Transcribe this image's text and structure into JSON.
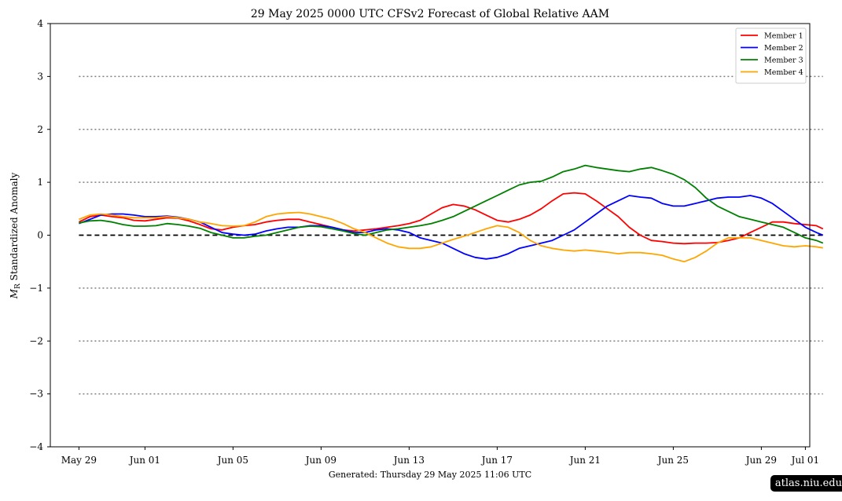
{
  "chart_data": {
    "type": "line",
    "title": "29  May  2025 0000 UTC   CFSv2 Forecast of Global Relative AAM",
    "ylabel": "M_R Standardized Anomaly",
    "ylabel_main": "M",
    "ylabel_sub": "R",
    "ylabel_rest": " Standardized Anomaly",
    "footer": "Generated: Thursday  29  May  2025  11:06 UTC",
    "x_unit": "days since May 29 2025 00 UTC",
    "xlim": [
      -1.3,
      33.2
    ],
    "ylim": [
      -4,
      4
    ],
    "xticks": [
      {
        "x": 0,
        "label": "May 29"
      },
      {
        "x": 3,
        "label": "Jun 01"
      },
      {
        "x": 7,
        "label": "Jun 05"
      },
      {
        "x": 11,
        "label": "Jun 09"
      },
      {
        "x": 15,
        "label": "Jun 13"
      },
      {
        "x": 19,
        "label": "Jun 17"
      },
      {
        "x": 23,
        "label": "Jun 21"
      },
      {
        "x": 27,
        "label": "Jun 25"
      },
      {
        "x": 31,
        "label": "Jun 29"
      },
      {
        "x": 33,
        "label": "Jul 01"
      }
    ],
    "yticks": [
      -4,
      -3,
      -2,
      -1,
      0,
      1,
      2,
      3,
      4
    ],
    "reference_lines": [
      {
        "y": 0,
        "style": "dashed",
        "color": "#000000"
      },
      {
        "y": 1,
        "style": "dotted",
        "color": "#808080"
      },
      {
        "y": 2,
        "style": "dotted",
        "color": "#808080"
      },
      {
        "y": 3,
        "style": "dotted",
        "color": "#808080"
      },
      {
        "y": -1,
        "style": "dotted",
        "color": "#808080"
      },
      {
        "y": -2,
        "style": "dotted",
        "color": "#808080"
      },
      {
        "y": -3,
        "style": "dotted",
        "color": "#808080"
      }
    ],
    "legend_position": "top-right",
    "series": [
      {
        "name": "Member 1",
        "color": "#ff0000",
        "points": [
          [
            0,
            0.25
          ],
          [
            0.5,
            0.35
          ],
          [
            1,
            0.38
          ],
          [
            1.5,
            0.35
          ],
          [
            2,
            0.33
          ],
          [
            2.5,
            0.28
          ],
          [
            3,
            0.27
          ],
          [
            3.5,
            0.3
          ],
          [
            4,
            0.33
          ],
          [
            4.5,
            0.32
          ],
          [
            5,
            0.27
          ],
          [
            5.5,
            0.2
          ],
          [
            6,
            0.12
          ],
          [
            6.5,
            0.1
          ],
          [
            7,
            0.15
          ],
          [
            7.5,
            0.18
          ],
          [
            8,
            0.2
          ],
          [
            8.5,
            0.25
          ],
          [
            9,
            0.28
          ],
          [
            9.5,
            0.3
          ],
          [
            10,
            0.3
          ],
          [
            10.5,
            0.25
          ],
          [
            11,
            0.2
          ],
          [
            11.5,
            0.15
          ],
          [
            12,
            0.1
          ],
          [
            12.5,
            0.08
          ],
          [
            13,
            0.1
          ],
          [
            13.5,
            0.12
          ],
          [
            14,
            0.15
          ],
          [
            14.5,
            0.18
          ],
          [
            15,
            0.22
          ],
          [
            15.5,
            0.28
          ],
          [
            16,
            0.4
          ],
          [
            16.5,
            0.52
          ],
          [
            17,
            0.58
          ],
          [
            17.5,
            0.55
          ],
          [
            18,
            0.48
          ],
          [
            18.5,
            0.38
          ],
          [
            19,
            0.28
          ],
          [
            19.5,
            0.25
          ],
          [
            20,
            0.3
          ],
          [
            20.5,
            0.38
          ],
          [
            21,
            0.5
          ],
          [
            21.5,
            0.65
          ],
          [
            22,
            0.78
          ],
          [
            22.5,
            0.8
          ],
          [
            23,
            0.78
          ],
          [
            23.5,
            0.65
          ],
          [
            24,
            0.5
          ],
          [
            24.5,
            0.35
          ],
          [
            25,
            0.15
          ],
          [
            25.5,
            0
          ],
          [
            26,
            -0.1
          ],
          [
            26.5,
            -0.12
          ],
          [
            27,
            -0.15
          ],
          [
            27.5,
            -0.16
          ],
          [
            28,
            -0.15
          ],
          [
            28.5,
            -0.15
          ],
          [
            29,
            -0.14
          ],
          [
            29.5,
            -0.1
          ],
          [
            30,
            -0.05
          ],
          [
            30.5,
            0.05
          ],
          [
            31,
            0.15
          ],
          [
            31.5,
            0.25
          ],
          [
            32,
            0.25
          ],
          [
            32.5,
            0.22
          ],
          [
            33,
            0.2
          ],
          [
            33.5,
            0.18
          ],
          [
            33.8,
            0.12
          ]
        ]
      },
      {
        "name": "Member 2",
        "color": "#0000ff",
        "points": [
          [
            0,
            0.22
          ],
          [
            0.5,
            0.3
          ],
          [
            1,
            0.38
          ],
          [
            1.5,
            0.4
          ],
          [
            2,
            0.4
          ],
          [
            2.5,
            0.38
          ],
          [
            3,
            0.35
          ],
          [
            3.5,
            0.35
          ],
          [
            4,
            0.36
          ],
          [
            4.5,
            0.34
          ],
          [
            5,
            0.3
          ],
          [
            5.5,
            0.25
          ],
          [
            6,
            0.15
          ],
          [
            6.5,
            0.05
          ],
          [
            7,
            0.02
          ],
          [
            7.5,
            0
          ],
          [
            8,
            0.02
          ],
          [
            8.5,
            0.08
          ],
          [
            9,
            0.12
          ],
          [
            9.5,
            0.15
          ],
          [
            10,
            0.15
          ],
          [
            10.5,
            0.18
          ],
          [
            11,
            0.18
          ],
          [
            11.5,
            0.15
          ],
          [
            12,
            0.1
          ],
          [
            12.5,
            0.05
          ],
          [
            13,
            0.05
          ],
          [
            13.5,
            0.1
          ],
          [
            14,
            0.12
          ],
          [
            14.5,
            0.1
          ],
          [
            15,
            0.05
          ],
          [
            15.5,
            -0.05
          ],
          [
            16,
            -0.1
          ],
          [
            16.5,
            -0.15
          ],
          [
            17,
            -0.25
          ],
          [
            17.5,
            -0.35
          ],
          [
            18,
            -0.42
          ],
          [
            18.5,
            -0.45
          ],
          [
            19,
            -0.42
          ],
          [
            19.5,
            -0.35
          ],
          [
            20,
            -0.25
          ],
          [
            20.5,
            -0.2
          ],
          [
            21,
            -0.15
          ],
          [
            21.5,
            -0.1
          ],
          [
            22,
            0
          ],
          [
            22.5,
            0.1
          ],
          [
            23,
            0.25
          ],
          [
            23.5,
            0.4
          ],
          [
            24,
            0.55
          ],
          [
            24.5,
            0.65
          ],
          [
            25,
            0.75
          ],
          [
            25.5,
            0.72
          ],
          [
            26,
            0.7
          ],
          [
            26.5,
            0.6
          ],
          [
            27,
            0.55
          ],
          [
            27.5,
            0.55
          ],
          [
            28,
            0.6
          ],
          [
            28.5,
            0.65
          ],
          [
            29,
            0.7
          ],
          [
            29.5,
            0.72
          ],
          [
            30,
            0.72
          ],
          [
            30.5,
            0.75
          ],
          [
            31,
            0.7
          ],
          [
            31.5,
            0.6
          ],
          [
            32,
            0.45
          ],
          [
            32.5,
            0.3
          ],
          [
            33,
            0.15
          ],
          [
            33.5,
            0.05
          ],
          [
            33.8,
            0
          ]
        ]
      },
      {
        "name": "Member 3",
        "color": "#008000",
        "points": [
          [
            0,
            0.23
          ],
          [
            0.5,
            0.27
          ],
          [
            1,
            0.28
          ],
          [
            1.5,
            0.25
          ],
          [
            2,
            0.2
          ],
          [
            2.5,
            0.17
          ],
          [
            3,
            0.17
          ],
          [
            3.5,
            0.18
          ],
          [
            4,
            0.22
          ],
          [
            4.5,
            0.2
          ],
          [
            5,
            0.17
          ],
          [
            5.5,
            0.13
          ],
          [
            6,
            0.05
          ],
          [
            6.5,
            0
          ],
          [
            7,
            -0.05
          ],
          [
            7.5,
            -0.05
          ],
          [
            8,
            -0.02
          ],
          [
            8.5,
            0
          ],
          [
            9,
            0.05
          ],
          [
            9.5,
            0.1
          ],
          [
            10,
            0.15
          ],
          [
            10.5,
            0.17
          ],
          [
            11,
            0.16
          ],
          [
            11.5,
            0.12
          ],
          [
            12,
            0.08
          ],
          [
            12.5,
            0.03
          ],
          [
            13,
            0
          ],
          [
            13.5,
            0.05
          ],
          [
            14,
            0.1
          ],
          [
            14.5,
            0.12
          ],
          [
            15,
            0.15
          ],
          [
            15.5,
            0.18
          ],
          [
            16,
            0.22
          ],
          [
            16.5,
            0.28
          ],
          [
            17,
            0.35
          ],
          [
            17.5,
            0.45
          ],
          [
            18,
            0.55
          ],
          [
            18.5,
            0.65
          ],
          [
            19,
            0.75
          ],
          [
            19.5,
            0.85
          ],
          [
            20,
            0.95
          ],
          [
            20.5,
            1.0
          ],
          [
            21,
            1.02
          ],
          [
            21.5,
            1.1
          ],
          [
            22,
            1.2
          ],
          [
            22.5,
            1.25
          ],
          [
            23,
            1.32
          ],
          [
            23.5,
            1.28
          ],
          [
            24,
            1.25
          ],
          [
            24.5,
            1.22
          ],
          [
            25,
            1.2
          ],
          [
            25.5,
            1.25
          ],
          [
            26,
            1.28
          ],
          [
            26.5,
            1.22
          ],
          [
            27,
            1.15
          ],
          [
            27.5,
            1.05
          ],
          [
            28,
            0.9
          ],
          [
            28.5,
            0.7
          ],
          [
            29,
            0.55
          ],
          [
            29.5,
            0.45
          ],
          [
            30,
            0.35
          ],
          [
            30.5,
            0.3
          ],
          [
            31,
            0.25
          ],
          [
            31.5,
            0.2
          ],
          [
            32,
            0.15
          ],
          [
            32.5,
            0.05
          ],
          [
            33,
            -0.05
          ],
          [
            33.5,
            -0.1
          ],
          [
            33.8,
            -0.15
          ]
        ]
      },
      {
        "name": "Member 4",
        "color": "#ffa500",
        "points": [
          [
            0,
            0.3
          ],
          [
            0.5,
            0.38
          ],
          [
            1,
            0.4
          ],
          [
            1.5,
            0.38
          ],
          [
            2,
            0.35
          ],
          [
            2.5,
            0.33
          ],
          [
            3,
            0.33
          ],
          [
            3.5,
            0.33
          ],
          [
            4,
            0.35
          ],
          [
            4.5,
            0.33
          ],
          [
            5,
            0.3
          ],
          [
            5.5,
            0.25
          ],
          [
            6,
            0.22
          ],
          [
            6.5,
            0.18
          ],
          [
            7,
            0.17
          ],
          [
            7.5,
            0.18
          ],
          [
            8,
            0.25
          ],
          [
            8.5,
            0.35
          ],
          [
            9,
            0.4
          ],
          [
            9.5,
            0.42
          ],
          [
            10,
            0.43
          ],
          [
            10.5,
            0.4
          ],
          [
            11,
            0.35
          ],
          [
            11.5,
            0.3
          ],
          [
            12,
            0.22
          ],
          [
            12.5,
            0.12
          ],
          [
            13,
            0.05
          ],
          [
            13.5,
            -0.05
          ],
          [
            14,
            -0.15
          ],
          [
            14.5,
            -0.22
          ],
          [
            15,
            -0.25
          ],
          [
            15.5,
            -0.25
          ],
          [
            16,
            -0.22
          ],
          [
            16.5,
            -0.15
          ],
          [
            17,
            -0.08
          ],
          [
            17.5,
            -0.02
          ],
          [
            18,
            0.05
          ],
          [
            18.5,
            0.12
          ],
          [
            19,
            0.18
          ],
          [
            19.5,
            0.15
          ],
          [
            20,
            0.05
          ],
          [
            20.5,
            -0.1
          ],
          [
            21,
            -0.2
          ],
          [
            21.5,
            -0.25
          ],
          [
            22,
            -0.28
          ],
          [
            22.5,
            -0.3
          ],
          [
            23,
            -0.28
          ],
          [
            23.5,
            -0.3
          ],
          [
            24,
            -0.32
          ],
          [
            24.5,
            -0.35
          ],
          [
            25,
            -0.33
          ],
          [
            25.5,
            -0.33
          ],
          [
            26,
            -0.35
          ],
          [
            26.5,
            -0.38
          ],
          [
            27,
            -0.45
          ],
          [
            27.5,
            -0.5
          ],
          [
            28,
            -0.42
          ],
          [
            28.5,
            -0.3
          ],
          [
            29,
            -0.15
          ],
          [
            29.5,
            -0.05
          ],
          [
            30,
            -0.05
          ],
          [
            30.5,
            -0.05
          ],
          [
            31,
            -0.1
          ],
          [
            31.5,
            -0.15
          ],
          [
            32,
            -0.2
          ],
          [
            32.5,
            -0.22
          ],
          [
            33,
            -0.2
          ],
          [
            33.5,
            -0.22
          ],
          [
            33.8,
            -0.24
          ]
        ]
      }
    ]
  },
  "watermark": "atlas.niu.edu"
}
